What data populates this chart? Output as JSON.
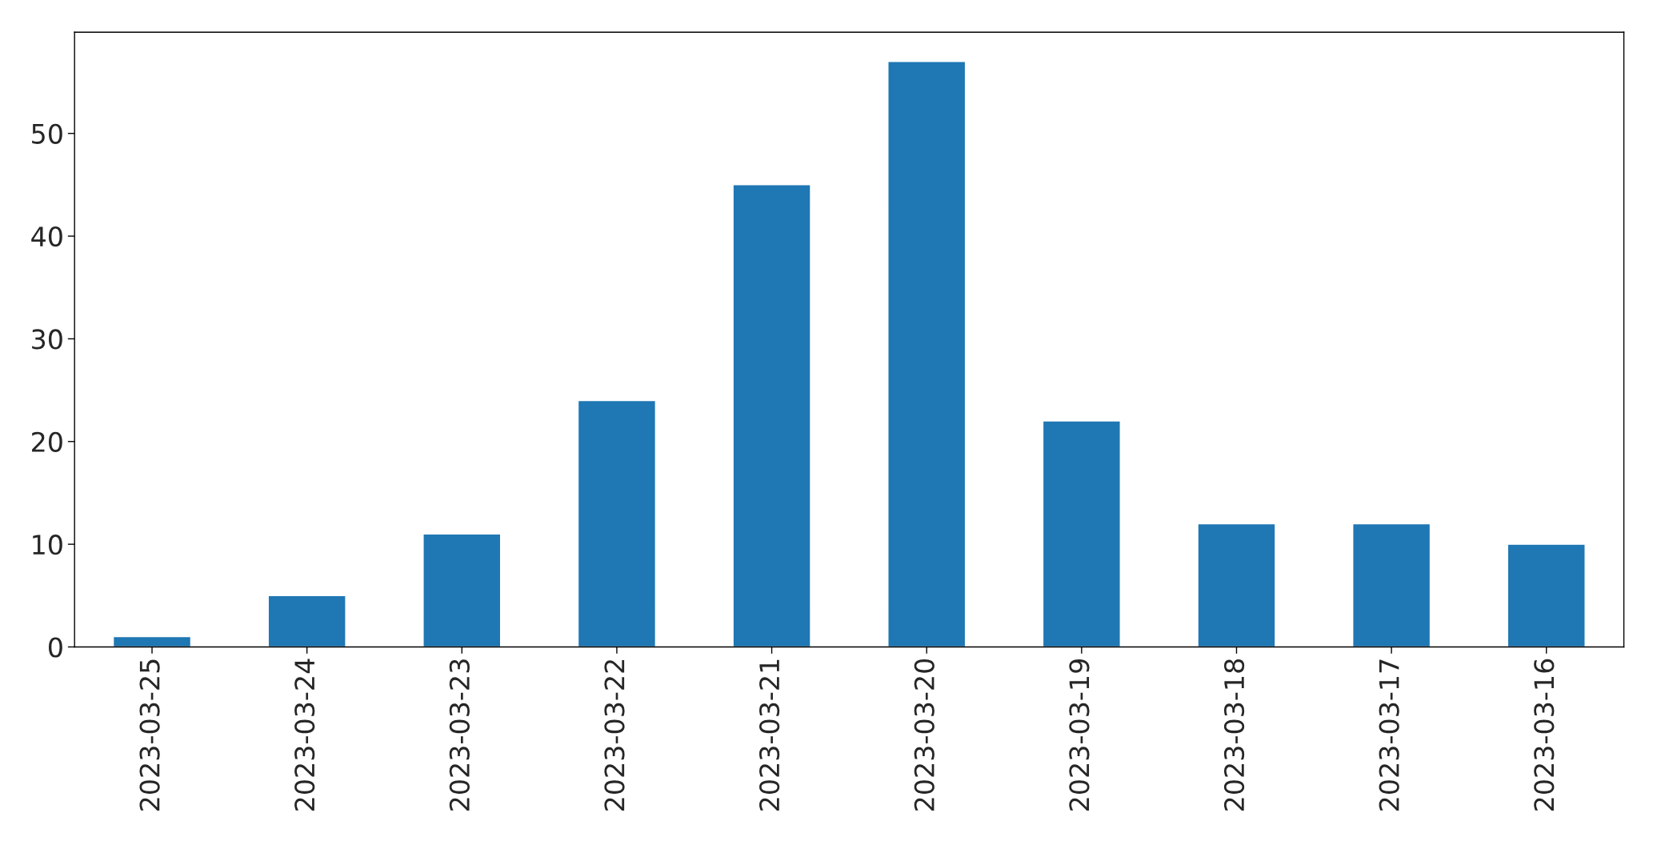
{
  "chart_data": {
    "type": "bar",
    "categories": [
      "2023-03-25",
      "2023-03-24",
      "2023-03-23",
      "2023-03-22",
      "2023-03-21",
      "2023-03-20",
      "2023-03-19",
      "2023-03-18",
      "2023-03-17",
      "2023-03-16"
    ],
    "values": [
      1,
      5,
      11,
      24,
      45,
      57,
      22,
      12,
      12,
      10
    ],
    "color": "#1f77b4",
    "ylim": [
      0,
      59.85
    ],
    "yticks": [
      0,
      10,
      20,
      30,
      40,
      50
    ],
    "grid": false
  }
}
